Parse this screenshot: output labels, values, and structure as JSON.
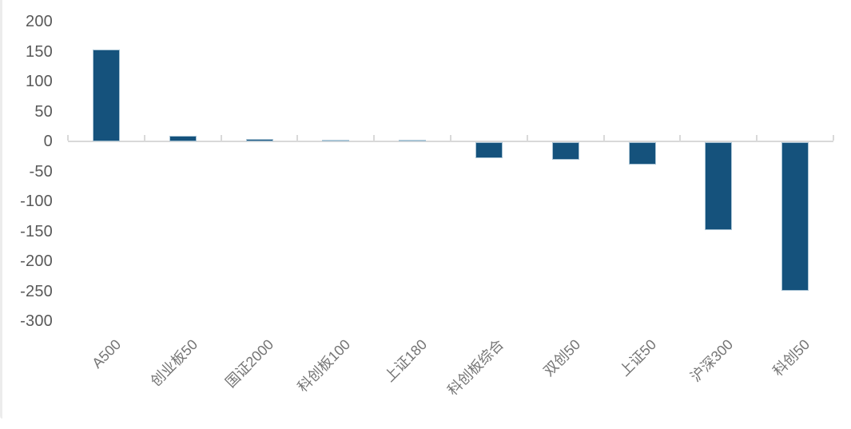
{
  "page": {
    "background": "#ffffff",
    "left_edge_color": "#ececec"
  },
  "chart_data": {
    "type": "bar",
    "title": "",
    "xlabel": "",
    "ylabel": "",
    "categories": [
      "A500",
      "创业板50",
      "国证2000",
      "科创板100",
      "上证180",
      "科创板综合",
      "双创50",
      "上证50",
      "沪深300",
      "科创50"
    ],
    "values": [
      154,
      10,
      4,
      3,
      3,
      -26,
      -29,
      -37,
      -147,
      -248
    ],
    "yticks": [
      200,
      150,
      100,
      50,
      0,
      -50,
      -100,
      -150,
      -200,
      -250,
      -300
    ],
    "ylim": [
      -300,
      200
    ],
    "grid": false,
    "legend": false,
    "bar_color": "#15527c",
    "bar_border_color": "#a9c4d5",
    "axis_color": "#d9d9d9",
    "y_tick_label_color": "#595959",
    "x_tick_label_color": "#757575"
  }
}
